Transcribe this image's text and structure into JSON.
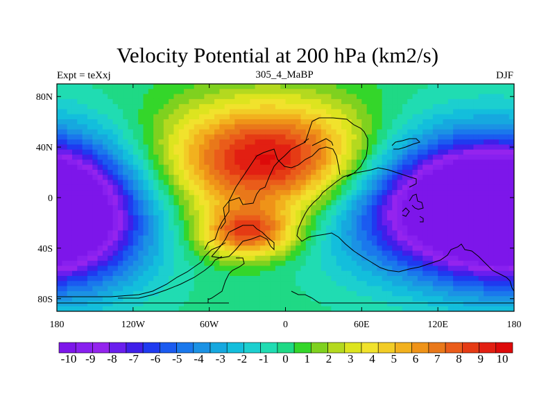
{
  "chart_data": {
    "type": "heatmap",
    "title": "Velocity Potential at 200 hPa (km2/s)",
    "left_label": "Expt = teXxj",
    "subtitle": "305_4_MaBP",
    "right_label": "DJF",
    "x_ticks": [
      "180",
      "120W",
      "60W",
      "0",
      "60E",
      "120E",
      "180"
    ],
    "x_tick_values": [
      -180,
      -120,
      -60,
      0,
      60,
      120,
      180
    ],
    "y_ticks": [
      "80N",
      "40N",
      "0",
      "40S",
      "80S"
    ],
    "y_tick_values": [
      80,
      40,
      0,
      -40,
      -80
    ],
    "xlim": [
      -180,
      180
    ],
    "ylim": [
      -90,
      90
    ],
    "colorbar_labels": [
      "-10",
      "-9",
      "-8",
      "-7",
      "-6",
      "-5",
      "-4",
      "-3",
      "-2",
      "-1",
      "0",
      "1",
      "2",
      "3",
      "4",
      "5",
      "6",
      "7",
      "8",
      "9",
      "10"
    ],
    "colorbar_range": [
      -10,
      10
    ],
    "colorbar_colors": [
      "#7d16ea",
      "#8820ef",
      "#9424ee",
      "#6a1eee",
      "#3f1fe9",
      "#1f3af0",
      "#1b5bf0",
      "#1a78ec",
      "#1b92e4",
      "#16a8df",
      "#13bedc",
      "#1ccfcf",
      "#20dcb2",
      "#1fd985",
      "#34d62a",
      "#7fd11f",
      "#b4d91f",
      "#dde41f",
      "#f1e22c",
      "#f2cc26",
      "#f2b11e",
      "#ef9318",
      "#e9781a",
      "#ea5c1a",
      "#e53b14",
      "#e21f12",
      "#dd0a0a"
    ],
    "maxima": [
      {
        "lon": -10,
        "lat": 30,
        "value": 10,
        "sx": 60,
        "sy": 32
      },
      {
        "lon": -30,
        "lat": -28,
        "value": 7,
        "sx": 26,
        "sy": 14
      }
    ],
    "minima": [
      {
        "lon": 120,
        "lat": -5,
        "value": -10,
        "sx": 62,
        "sy": 38
      },
      {
        "lon": -175,
        "lat": -15,
        "value": -10,
        "sx": 48,
        "sy": 40
      }
    ],
    "background_value": 0
  }
}
